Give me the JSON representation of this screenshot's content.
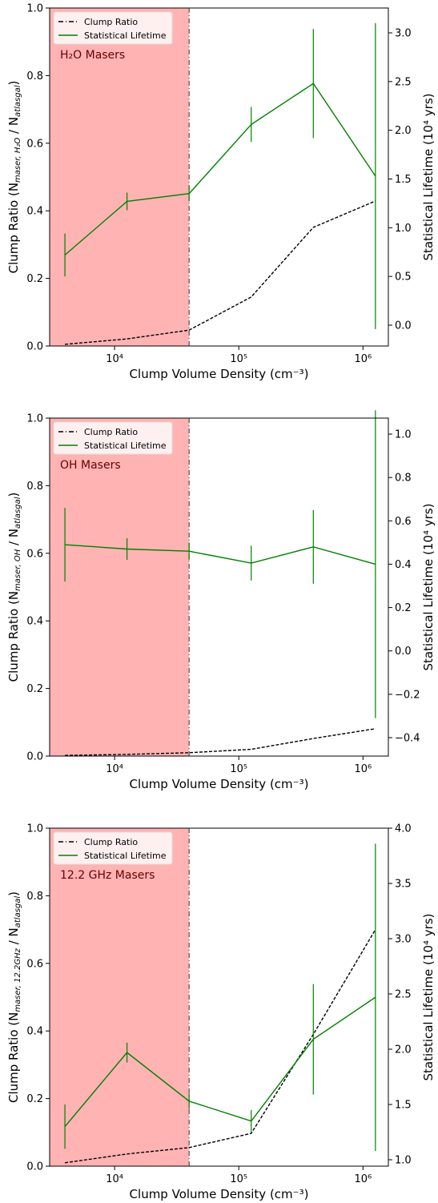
{
  "chart_data": [
    {
      "type": "line",
      "annotation": "H₂O Masers",
      "xlabel": "Clump Volume Density (cm⁻³)",
      "ylabel_parts": [
        "Clump Ratio (N",
        "maser, H₂O",
        " / N",
        "atlasgal",
        ")"
      ],
      "y2label": "Statistical Lifetime (10⁴ yrs)",
      "x": [
        3981,
        12589,
        39811,
        125893,
        398107,
        1258925
      ],
      "xlim": [
        3000,
        1600000
      ],
      "log_x": true,
      "xticks": [
        {
          "value": 10000,
          "label": "10⁴"
        },
        {
          "value": 100000,
          "label": "10⁵"
        },
        {
          "value": 1000000,
          "label": "10⁶"
        }
      ],
      "ylim": [
        0,
        1
      ],
      "yticks": [
        {
          "value": 0,
          "label": "0.0"
        },
        0.2,
        0.4,
        0.6,
        0.8,
        {
          "value": 1,
          "label": "1.0"
        }
      ],
      "y2lim": [
        -0.214,
        3.255
      ],
      "y2ticks": [
        {
          "value": 0,
          "label": "0.0"
        },
        0.5,
        {
          "value": 1,
          "label": "1.0"
        },
        1.5,
        {
          "value": 2,
          "label": "2.0"
        },
        2.5,
        {
          "value": 3,
          "label": "3.0"
        }
      ],
      "vline": 39811,
      "shade_color": "#ffb3b3",
      "legend": "upper left",
      "series": [
        {
          "name": "Clump Ratio",
          "color": "#000000",
          "values": [
            0.005,
            0.021,
            0.047,
            0.145,
            0.351,
            0.429
          ]
        },
        {
          "name": "Statistical Lifetime",
          "color": "#008000",
          "axis": "y2",
          "values": [
            0.72,
            1.27,
            1.35,
            2.06,
            2.48,
            1.53
          ],
          "errors": [
            0.22,
            0.09,
            0.08,
            0.18,
            0.56,
            1.57
          ]
        }
      ]
    },
    {
      "type": "line",
      "annotation": "OH Masers",
      "xlabel": "Clump Volume Density (cm⁻³)",
      "ylabel_parts": [
        "Clump Ratio (N",
        "maser, OH",
        " / N",
        "atlasgal",
        ")"
      ],
      "y2label": "Statistical Lifetime (10⁴ yrs)",
      "x": [
        3981,
        12589,
        39811,
        125893,
        398107,
        1258925
      ],
      "xlim": [
        3000,
        1600000
      ],
      "log_x": true,
      "xticks": [
        {
          "value": 10000,
          "label": "10⁴"
        },
        {
          "value": 100000,
          "label": "10⁵"
        },
        {
          "value": 1000000,
          "label": "10⁶"
        }
      ],
      "ylim": [
        0,
        1
      ],
      "yticks": [
        {
          "value": 0,
          "label": "0.0"
        },
        0.2,
        0.4,
        0.6,
        0.8,
        {
          "value": 1,
          "label": "1.0"
        }
      ],
      "y2lim": [
        -0.485,
        1.074
      ],
      "y2ticks": [
        {
          "value": -0.4,
          "label": "−0.4"
        },
        {
          "value": -0.2,
          "label": "−0.2"
        },
        {
          "value": 0,
          "label": "0.0"
        },
        0.2,
        0.4,
        0.6,
        0.8,
        {
          "value": 1,
          "label": "1.0"
        }
      ],
      "vline": 39811,
      "shade_color": "#ffb3b3",
      "legend": "upper left",
      "series": [
        {
          "name": "Clump Ratio",
          "color": "#000000",
          "values": [
            0.002,
            0.005,
            0.01,
            0.02,
            0.052,
            0.081
          ]
        },
        {
          "name": "Statistical Lifetime",
          "color": "#008000",
          "axis": "y2",
          "values": [
            0.49,
            0.47,
            0.46,
            0.405,
            0.48,
            0.4
          ],
          "errors": [
            0.17,
            0.05,
            0.04,
            0.08,
            0.17,
            0.71
          ]
        }
      ]
    },
    {
      "type": "line",
      "annotation": "12.2 GHz Masers",
      "xlabel": "Clump Volume Density (cm⁻³)",
      "ylabel_parts": [
        "Clump Ratio (N",
        "maser, 12.2GHz",
        " / N",
        "atlasgal",
        ")"
      ],
      "y2label": "Statistical Lifetime (10⁴ yrs)",
      "x": [
        3981,
        12589,
        39811,
        125893,
        398107,
        1258925
      ],
      "xlim": [
        3000,
        1600000
      ],
      "log_x": true,
      "xticks": [
        {
          "value": 10000,
          "label": "10⁴"
        },
        {
          "value": 100000,
          "label": "10⁵"
        },
        {
          "value": 1000000,
          "label": "10⁶"
        }
      ],
      "ylim": [
        0,
        1
      ],
      "yticks": [
        {
          "value": 0,
          "label": "0.0"
        },
        0.2,
        0.4,
        0.6,
        0.8,
        {
          "value": 1,
          "label": "1.0"
        }
      ],
      "y2lim": [
        0.942,
        4.0
      ],
      "y2ticks": [
        {
          "value": 1,
          "label": "1.0"
        },
        1.5,
        {
          "value": 2,
          "label": "2.0"
        },
        2.5,
        {
          "value": 3,
          "label": "3.0"
        },
        3.5,
        {
          "value": 4,
          "label": "4.0"
        }
      ],
      "vline": 39811,
      "shade_color": "#ffb3b3",
      "legend": "upper left",
      "series": [
        {
          "name": "Clump Ratio",
          "color": "#000000",
          "values": [
            0.01,
            0.036,
            0.055,
            0.097,
            0.39,
            0.7
          ]
        },
        {
          "name": "Statistical Lifetime",
          "color": "#008000",
          "axis": "y2",
          "values": [
            1.3,
            1.97,
            1.53,
            1.35,
            2.09,
            2.47
          ],
          "errors": [
            0.2,
            0.09,
            0.07,
            0.1,
            0.5,
            1.39
          ]
        }
      ]
    }
  ]
}
